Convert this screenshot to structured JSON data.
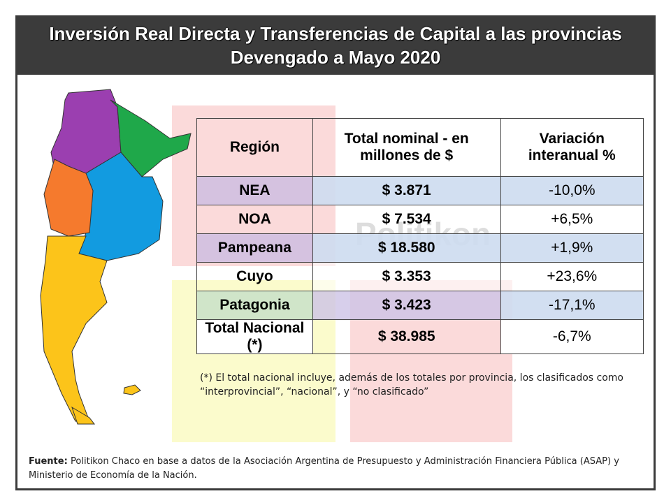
{
  "header": {
    "title_line1": "Inversión Real Directa y Transferencias de Capital a las provincias",
    "title_line2": "Devengado a Mayo 2020"
  },
  "watermark": "Politikon",
  "table": {
    "columns": [
      "Región",
      "Total nominal - en millones de $",
      "Variación interanual %"
    ],
    "rows": [
      [
        "NEA",
        "$ 3.871",
        "-10,0%"
      ],
      [
        "NOA",
        "$ 7.534",
        "+6,5%"
      ],
      [
        "Pampeana",
        "$ 18.580",
        "+1,9%"
      ],
      [
        "Cuyo",
        "$ 3.353",
        "+23,6%"
      ],
      [
        "Patagonia",
        "$ 3.423",
        "-17,1%"
      ],
      [
        "Total Nacional (*)",
        "$ 38.985",
        "-6,7%"
      ]
    ]
  },
  "footnote": "(*) El total nacional incluye, además de los totales por provincia, los clasificados como “interprovincial”, “nacional”, y “no clasificado”",
  "source": {
    "label": "Fuente:",
    "text": "Politikon Chaco en base a datos de la Asociación Argentina de Presupuesto y Administración Financiera Pública (ASAP) y Ministerio de Economía de la Nación."
  }
}
